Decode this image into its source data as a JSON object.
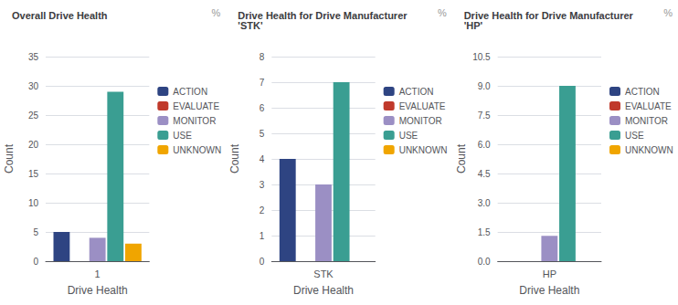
{
  "chart_data": [
    {
      "type": "bar",
      "title": "Overall Drive Health",
      "xlabel": "Drive Health",
      "ylabel": "Count",
      "annotations": [
        "%"
      ],
      "categories": [
        "1"
      ],
      "series": [
        {
          "name": "ACTION",
          "color": "#2e4482",
          "values": [
            5
          ]
        },
        {
          "name": "EVALUATE",
          "color": "#c0392b",
          "values": [
            0
          ]
        },
        {
          "name": "MONITOR",
          "color": "#9b8fc4",
          "values": [
            4
          ]
        },
        {
          "name": "USE",
          "color": "#3a9e92",
          "values": [
            29
          ]
        },
        {
          "name": "UNKNOWN",
          "color": "#f0a500",
          "values": [
            3
          ]
        }
      ],
      "ylim": [
        0,
        35
      ],
      "yticks": [
        0,
        5,
        10,
        15,
        20,
        25,
        30,
        35
      ],
      "grid": true,
      "legend": "right"
    },
    {
      "type": "bar",
      "title": "Drive Health for Drive Manufacturer\n'STK'",
      "xlabel": "Drive Health",
      "ylabel": "Count",
      "annotations": [
        "%"
      ],
      "categories": [
        "STK"
      ],
      "series": [
        {
          "name": "ACTION",
          "color": "#2e4482",
          "values": [
            4
          ]
        },
        {
          "name": "EVALUATE",
          "color": "#c0392b",
          "values": [
            0
          ]
        },
        {
          "name": "MONITOR",
          "color": "#9b8fc4",
          "values": [
            3
          ]
        },
        {
          "name": "USE",
          "color": "#3a9e92",
          "values": [
            7
          ]
        },
        {
          "name": "UNKNOWN",
          "color": "#f0a500",
          "values": [
            0
          ]
        }
      ],
      "ylim": [
        0,
        8
      ],
      "yticks": [
        0,
        1,
        2,
        3,
        4,
        5,
        6,
        7,
        8
      ],
      "grid": true,
      "legend": "right"
    },
    {
      "type": "bar",
      "title": "Drive Health for Drive Manufacturer\n'HP'",
      "xlabel": "Drive Health",
      "ylabel": "Count",
      "annotations": [
        "%"
      ],
      "categories": [
        "HP"
      ],
      "series": [
        {
          "name": "ACTION",
          "color": "#2e4482",
          "values": [
            0
          ]
        },
        {
          "name": "EVALUATE",
          "color": "#c0392b",
          "values": [
            0
          ]
        },
        {
          "name": "MONITOR",
          "color": "#9b8fc4",
          "values": [
            1.3
          ]
        },
        {
          "name": "USE",
          "color": "#3a9e92",
          "values": [
            9
          ]
        },
        {
          "name": "UNKNOWN",
          "color": "#f0a500",
          "values": [
            0
          ]
        }
      ],
      "ylim": [
        0,
        10.5
      ],
      "yticks": [
        {
          "value": 0,
          "label": "0.0"
        },
        1.5,
        {
          "value": 3,
          "label": "3.0"
        },
        4.5,
        {
          "value": 6,
          "label": "6.0"
        },
        7.5,
        {
          "value": 9,
          "label": "9.0"
        },
        10.5
      ],
      "grid": true,
      "legend": "right"
    }
  ]
}
